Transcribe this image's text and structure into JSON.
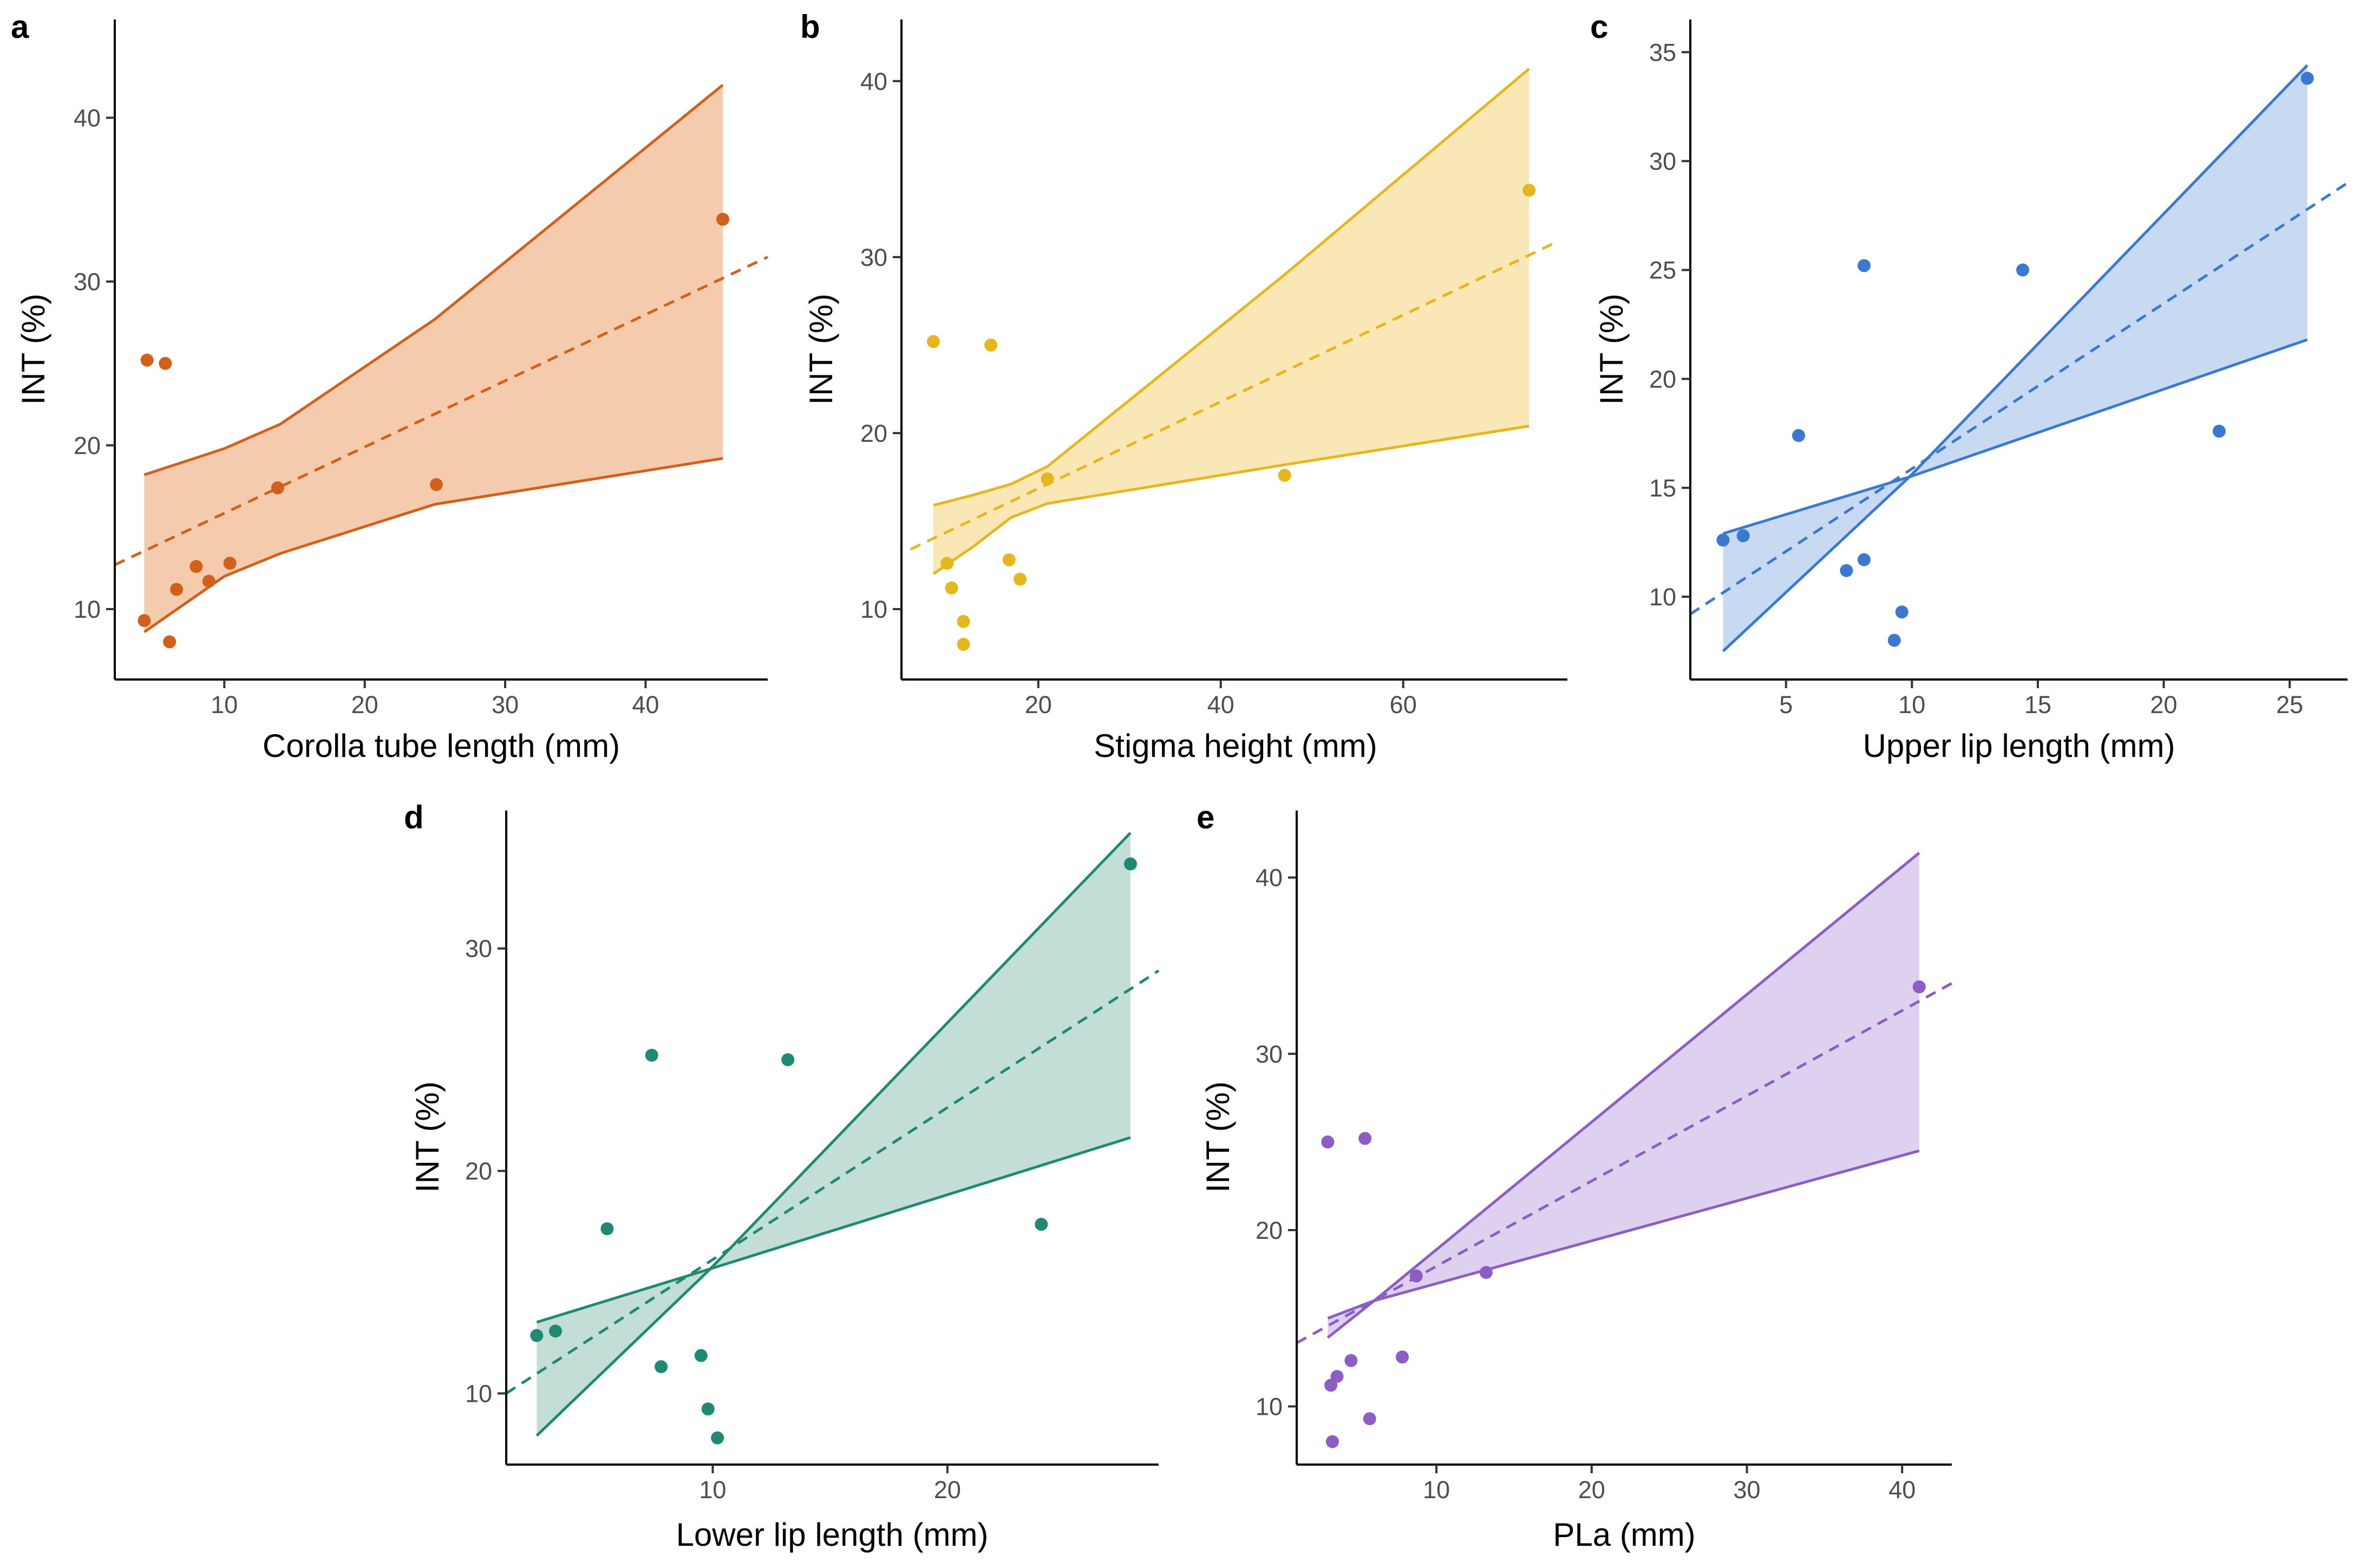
{
  "chart_data": [
    {
      "id": "a",
      "panel_label": "a",
      "type": "scatter",
      "xlabel": "Corolla tube length (mm)",
      "ylabel": "INT (%)",
      "xlim": [
        2.2,
        48.7
      ],
      "ylim": [
        5.7,
        46.0
      ],
      "xticks": [
        10,
        20,
        30,
        40
      ],
      "yticks": [
        10,
        20,
        30,
        40
      ],
      "color": "#D2601A",
      "fill_color": "#F5CBAE",
      "points": [
        [
          4.5,
          25.2
        ],
        [
          5.8,
          25.0
        ],
        [
          4.3,
          9.3
        ],
        [
          6.1,
          8.0
        ],
        [
          6.6,
          11.2
        ],
        [
          8.0,
          12.6
        ],
        [
          8.9,
          11.7
        ],
        [
          10.4,
          12.8
        ],
        [
          13.8,
          17.4
        ],
        [
          25.1,
          17.6
        ],
        [
          45.5,
          33.8
        ]
      ],
      "trend_line": [
        [
          2.2,
          12.7
        ],
        [
          48.7,
          31.5
        ]
      ],
      "band_upper": [
        [
          4.3,
          18.2
        ],
        [
          10.0,
          19.8
        ],
        [
          14.0,
          21.3
        ],
        [
          25.0,
          27.7
        ],
        [
          45.5,
          42.0
        ]
      ],
      "band_lower": [
        [
          4.3,
          8.6
        ],
        [
          10.0,
          12.0
        ],
        [
          14.0,
          13.4
        ],
        [
          25.0,
          16.4
        ],
        [
          45.5,
          19.2
        ]
      ]
    },
    {
      "id": "b",
      "panel_label": "b",
      "type": "scatter",
      "xlabel": "Stigma height (mm)",
      "ylabel": "INT (%)",
      "xlim": [
        5,
        78
      ],
      "ylim": [
        6,
        43.5
      ],
      "xticks": [
        20,
        40,
        60
      ],
      "yticks": [
        10,
        20,
        30,
        40
      ],
      "color": "#E5B71C",
      "fill_color": "#F9E8B5",
      "points": [
        [
          8.5,
          25.2
        ],
        [
          14.8,
          25.0
        ],
        [
          10.0,
          12.6
        ],
        [
          10.5,
          11.2
        ],
        [
          11.8,
          9.3
        ],
        [
          11.8,
          8.0
        ],
        [
          16.8,
          12.8
        ],
        [
          18.0,
          11.7
        ],
        [
          21.0,
          17.4
        ],
        [
          47.0,
          17.6
        ],
        [
          73.8,
          33.8
        ]
      ],
      "trend_line": [
        [
          6.0,
          13.4
        ],
        [
          77.0,
          30.9
        ]
      ],
      "band_upper": [
        [
          8.5,
          15.9
        ],
        [
          13.0,
          16.5
        ],
        [
          17.0,
          17.1
        ],
        [
          21.0,
          18.1
        ],
        [
          47.0,
          29.0
        ],
        [
          73.8,
          40.7
        ]
      ],
      "band_lower": [
        [
          8.5,
          12.0
        ],
        [
          13.0,
          13.6
        ],
        [
          17.0,
          15.2
        ],
        [
          21.0,
          16.0
        ],
        [
          47.0,
          18.2
        ],
        [
          73.8,
          20.4
        ]
      ]
    },
    {
      "id": "c",
      "panel_label": "c",
      "type": "scatter",
      "xlabel": "Upper lip length (mm)",
      "ylabel": "INT (%)",
      "xlim": [
        1.2,
        27.3
      ],
      "ylim": [
        6.2,
        36.5
      ],
      "xticks": [
        5,
        10,
        15,
        20,
        25
      ],
      "yticks": [
        10,
        15,
        20,
        25,
        30,
        35
      ],
      "color": "#3A78D2",
      "fill_color": "#C8D9F2",
      "points": [
        [
          2.5,
          12.6
        ],
        [
          3.3,
          12.8
        ],
        [
          5.5,
          17.4
        ],
        [
          7.4,
          11.2
        ],
        [
          8.1,
          25.2
        ],
        [
          8.1,
          11.7
        ],
        [
          9.3,
          8.0
        ],
        [
          9.6,
          9.3
        ],
        [
          14.4,
          25.0
        ],
        [
          22.2,
          17.6
        ],
        [
          25.7,
          33.8
        ]
      ],
      "trend_line": [
        [
          1.2,
          9.2
        ],
        [
          27.3,
          29.0
        ]
      ],
      "band_upper": [
        [
          2.5,
          12.9
        ],
        [
          9.9,
          15.5
        ],
        [
          25.7,
          34.4
        ]
      ],
      "band_lower": [
        [
          2.5,
          7.5
        ],
        [
          9.9,
          15.5
        ],
        [
          25.7,
          21.8
        ]
      ]
    },
    {
      "id": "d",
      "panel_label": "d",
      "type": "scatter",
      "xlabel": "Lower lip length (mm)",
      "ylabel": "INT (%)",
      "xlim": [
        1.2,
        29.0
      ],
      "ylim": [
        6.8,
        36.2
      ],
      "xticks": [
        10,
        20
      ],
      "yticks": [
        10,
        20,
        30
      ],
      "color": "#1E8A72",
      "fill_color": "#C3DED7",
      "points": [
        [
          2.5,
          12.6
        ],
        [
          3.3,
          12.8
        ],
        [
          5.5,
          17.4
        ],
        [
          7.4,
          25.2
        ],
        [
          7.8,
          11.2
        ],
        [
          9.5,
          11.7
        ],
        [
          9.8,
          9.3
        ],
        [
          10.2,
          8.0
        ],
        [
          13.2,
          25.0
        ],
        [
          24.0,
          17.6
        ],
        [
          27.8,
          33.8
        ]
      ],
      "trend_line": [
        [
          1.2,
          10.0
        ],
        [
          29.0,
          29.0
        ]
      ],
      "band_upper": [
        [
          2.5,
          13.2
        ],
        [
          9.9,
          15.6
        ],
        [
          27.8,
          35.2
        ]
      ],
      "band_lower": [
        [
          2.5,
          8.1
        ],
        [
          9.9,
          15.6
        ],
        [
          27.8,
          21.5
        ]
      ]
    },
    {
      "id": "e",
      "panel_label": "e",
      "type": "scatter",
      "xlabel": "PLa (mm)",
      "ylabel": "INT (%)",
      "xlim": [
        1.0,
        43.2
      ],
      "ylim": [
        6.7,
        43.8
      ],
      "xticks": [
        10,
        20,
        30,
        40
      ],
      "yticks": [
        10,
        20,
        30,
        40
      ],
      "color": "#8C5EC4",
      "fill_color": "#DED1EF",
      "points": [
        [
          3.0,
          25.0
        ],
        [
          3.2,
          11.2
        ],
        [
          3.3,
          8.0
        ],
        [
          3.6,
          11.7
        ],
        [
          4.5,
          12.6
        ],
        [
          5.4,
          25.2
        ],
        [
          5.7,
          9.3
        ],
        [
          7.8,
          12.8
        ],
        [
          8.7,
          17.4
        ],
        [
          13.2,
          17.6
        ],
        [
          41.1,
          33.8
        ]
      ],
      "trend_line": [
        [
          1.0,
          13.6
        ],
        [
          43.2,
          34.0
        ]
      ],
      "band_upper": [
        [
          3.0,
          13.9
        ],
        [
          6.0,
          16.0
        ],
        [
          41.1,
          41.4
        ]
      ],
      "band_lower": [
        [
          3.0,
          15.0
        ],
        [
          6.0,
          16.0
        ],
        [
          41.1,
          24.5
        ]
      ]
    }
  ]
}
